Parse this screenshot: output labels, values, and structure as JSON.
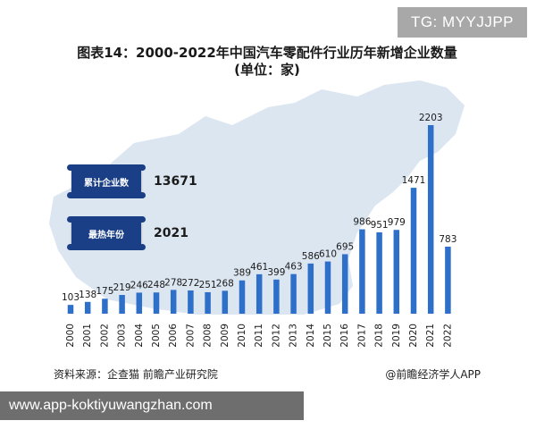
{
  "overlay": {
    "tg_badge": "TG: MYYJJPP",
    "url": "www.app-koktiyuwangzhan.com"
  },
  "title_line1": "图表14：2000-2022年中国汽车零配件行业历年新增企业数量",
  "title_line2": "(单位：家)",
  "stats": {
    "total_label": "累计企业数",
    "total_value": "13671",
    "hot_label": "最热年份",
    "hot_value": "2021"
  },
  "source": "资料来源：企查猫 前瞻产业研究院",
  "brand": "@前瞻经济学人APP",
  "colors": {
    "bar": "#2e6fc9",
    "map": "#dce6f1",
    "box": "#1b3f86"
  },
  "chart_data": {
    "type": "bar",
    "categories": [
      "2000",
      "2001",
      "2002",
      "2003",
      "2004",
      "2005",
      "2006",
      "2007",
      "2008",
      "2009",
      "2010",
      "2011",
      "2012",
      "2013",
      "2014",
      "2015",
      "2016",
      "2017",
      "2018",
      "2019",
      "2020",
      "2021",
      "2022"
    ],
    "values": [
      103,
      138,
      175,
      219,
      246,
      248,
      278,
      272,
      251,
      268,
      389,
      461,
      399,
      463,
      586,
      610,
      695,
      986,
      951,
      979,
      1471,
      2203,
      783
    ],
    "ylim": [
      0,
      2203
    ]
  }
}
